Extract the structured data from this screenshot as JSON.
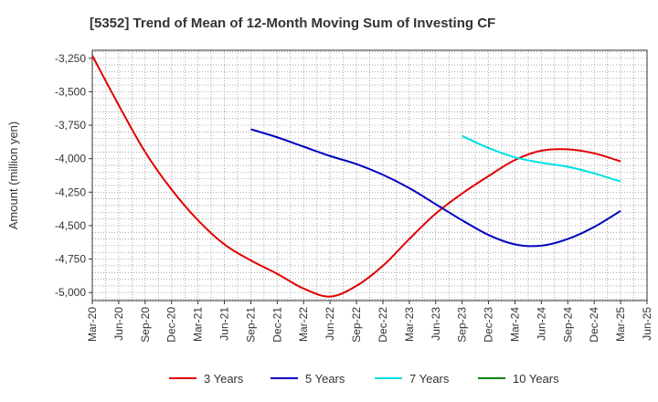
{
  "chart_data": {
    "type": "line",
    "title": "[5352]  Trend of Mean of 12-Month Moving Sum of Investing CF",
    "ylabel": "Amount (million yen)",
    "xlabel": "",
    "ylim": [
      -5060,
      -3190
    ],
    "yticks": [
      -3250,
      -3500,
      -3750,
      -4000,
      -4250,
      -4500,
      -4750,
      -5000
    ],
    "ytick_labels": [
      "-3,250",
      "-3,500",
      "-3,750",
      "-4,000",
      "-4,250",
      "-4,500",
      "-4,750",
      "-5,000"
    ],
    "xticks": [
      "Mar-20",
      "Jun-20",
      "Sep-20",
      "Dec-20",
      "Mar-21",
      "Jun-21",
      "Sep-21",
      "Dec-21",
      "Mar-22",
      "Jun-22",
      "Sep-22",
      "Dec-22",
      "Mar-23",
      "Jun-23",
      "Sep-23",
      "Dec-23",
      "Mar-24",
      "Jun-24",
      "Sep-24",
      "Dec-24",
      "Mar-25",
      "Jun-25"
    ],
    "grid": true,
    "legend_position": "bottom",
    "series": [
      {
        "name": "3 Years",
        "color": "#e00000",
        "x": [
          "Mar-20",
          "Jun-20",
          "Sep-20",
          "Dec-20",
          "Mar-21",
          "Jun-21",
          "Sep-21",
          "Dec-21",
          "Mar-22",
          "Jun-22",
          "Sep-22",
          "Dec-22",
          "Mar-23",
          "Jun-23",
          "Sep-23",
          "Dec-23",
          "Mar-24",
          "Jun-24",
          "Sep-24",
          "Dec-24",
          "Mar-25"
        ],
        "values": [
          -3230,
          -3600,
          -3950,
          -4230,
          -4460,
          -4640,
          -4760,
          -4860,
          -4970,
          -5030,
          -4950,
          -4800,
          -4600,
          -4410,
          -4260,
          -4130,
          -4010,
          -3940,
          -3930,
          -3960,
          -4020
        ]
      },
      {
        "name": "5 Years",
        "color": "#0000c0",
        "x": [
          "Sep-21",
          "Dec-21",
          "Mar-22",
          "Jun-22",
          "Sep-22",
          "Dec-22",
          "Mar-23",
          "Jun-23",
          "Sep-23",
          "Dec-23",
          "Mar-24",
          "Jun-24",
          "Sep-24",
          "Dec-24",
          "Mar-25"
        ],
        "values": [
          -3780,
          -3840,
          -3910,
          -3980,
          -4040,
          -4120,
          -4220,
          -4340,
          -4460,
          -4570,
          -4640,
          -4650,
          -4600,
          -4510,
          -4390
        ]
      },
      {
        "name": "7 Years",
        "color": "#00e0e0",
        "x": [
          "Sep-23",
          "Dec-23",
          "Mar-24",
          "Jun-24",
          "Sep-24",
          "Dec-24",
          "Mar-25"
        ],
        "values": [
          -3830,
          -3920,
          -3990,
          -4030,
          -4060,
          -4110,
          -4170
        ]
      },
      {
        "name": "10 Years",
        "color": "#008000",
        "x": [],
        "values": []
      }
    ]
  }
}
